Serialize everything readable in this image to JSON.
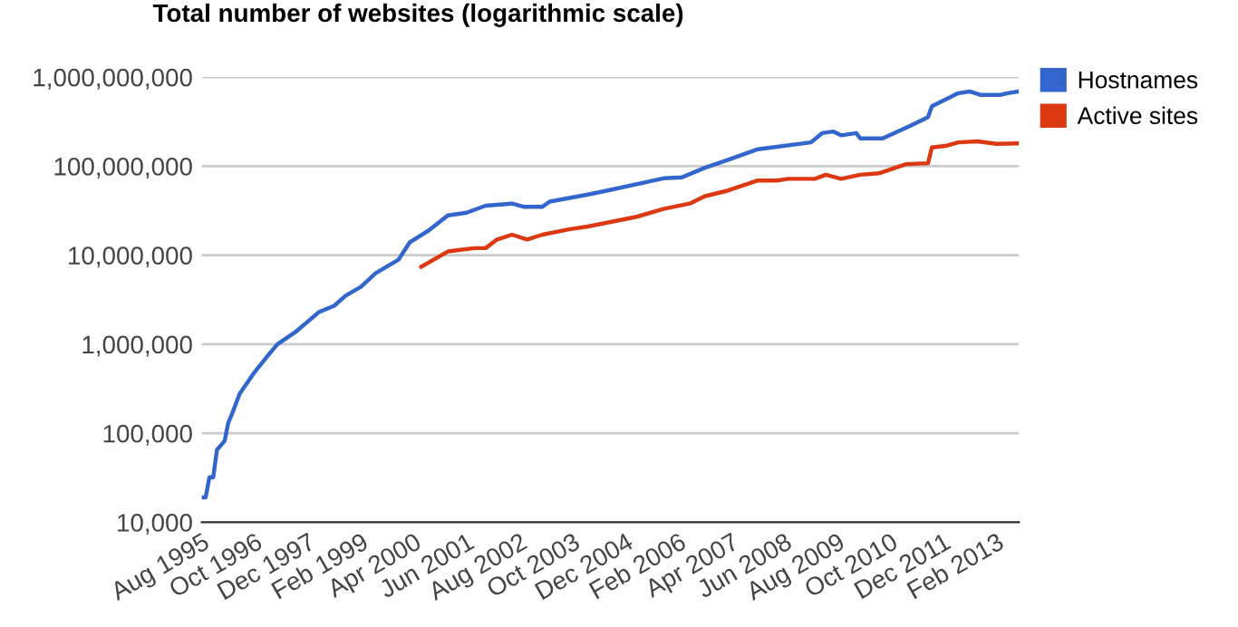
{
  "chart_data": {
    "type": "line",
    "title": "Total number of websites (logarithmic scale)",
    "log": "y",
    "grid": "y",
    "legend": "top right",
    "marker": "none",
    "line_style": "solid",
    "xlim": [
      "1995-08",
      "2013-08"
    ],
    "xticks": [
      {
        "value": "1995-08",
        "label": "Aug 1995"
      },
      {
        "value": "1996-10",
        "label": "Oct 1996"
      },
      {
        "value": "1997-12",
        "label": "Dec 1997"
      },
      {
        "value": "1999-02",
        "label": "Feb 1999"
      },
      {
        "value": "2000-04",
        "label": "Apr 2000"
      },
      {
        "value": "2001-06",
        "label": "Jun 2001"
      },
      {
        "value": "2002-08",
        "label": "Aug 2002"
      },
      {
        "value": "2003-10",
        "label": "Oct 2003"
      },
      {
        "value": "2004-12",
        "label": "Dec 2004"
      },
      {
        "value": "2006-02",
        "label": "Feb 2006"
      },
      {
        "value": "2007-04",
        "label": "Apr 2007"
      },
      {
        "value": "2008-06",
        "label": "Jun 2008"
      },
      {
        "value": "2009-08",
        "label": "Aug 2009"
      },
      {
        "value": "2010-10",
        "label": "Oct 2010"
      },
      {
        "value": "2011-12",
        "label": "Dec 2011"
      },
      {
        "value": "2013-02",
        "label": "Feb 2013"
      }
    ],
    "ylim": [
      10000,
      1000000000
    ],
    "yticks": [
      {
        "value": 10000,
        "label": "10,000"
      },
      {
        "value": 100000,
        "label": "100,000"
      },
      {
        "value": 1000000,
        "label": "1,000,000"
      },
      {
        "value": 10000000,
        "label": "10,000,000"
      },
      {
        "value": 100000000,
        "label": "100,000,000"
      },
      {
        "value": 1000000000,
        "label": "1,000,000,000"
      }
    ],
    "series": [
      {
        "name": "Hostnames",
        "color": "#3366cc",
        "x": [
          "1995-08",
          "1995-09",
          "1995-10",
          "1995-11",
          "1995-12",
          "1996-02",
          "1996-03",
          "1996-04",
          "1996-06",
          "1996-10",
          "1997-01",
          "1997-04",
          "1997-09",
          "1998-03",
          "1998-07",
          "1998-10",
          "1999-02",
          "1999-06",
          "1999-12",
          "2000-03",
          "2000-08",
          "2001-01",
          "2001-06",
          "2001-11",
          "2002-06",
          "2002-09",
          "2003-02",
          "2003-04",
          "2004-02",
          "2004-07",
          "2005-10",
          "2006-03",
          "2006-09",
          "2007-03",
          "2007-11",
          "2009-01",
          "2009-04",
          "2009-07",
          "2009-09",
          "2010-01",
          "2010-02",
          "2010-08",
          "2011-03",
          "2011-08",
          "2011-09",
          "2012-04",
          "2012-07",
          "2012-10",
          "2013-03",
          "2013-05",
          "2013-08"
        ],
        "values": [
          19000,
          19000,
          32000,
          32000,
          65000,
          82000,
          131000,
          166000,
          278000,
          490000,
          710000,
          1000000,
          1400000,
          2300000,
          2700000,
          3500000,
          4400000,
          6300000,
          8900000,
          14000000,
          19000000,
          28000000,
          30000000,
          36000000,
          38000000,
          35000000,
          35000000,
          40000000,
          48000000,
          53000000,
          73000000,
          75000000,
          96000000,
          117000000,
          155000000,
          185000000,
          235000000,
          245000000,
          222000000,
          235000000,
          205000000,
          205000000,
          280000000,
          355000000,
          470000000,
          660000000,
          690000000,
          630000000,
          630000000,
          660000000,
          690000000
        ]
      },
      {
        "name": "Active sites",
        "color": "#dc3912",
        "x": [
          "2000-06",
          "2001-01",
          "2001-08",
          "2001-11",
          "2002-02",
          "2002-06",
          "2002-10",
          "2003-02",
          "2003-09",
          "2004-02",
          "2005-03",
          "2005-10",
          "2006-05",
          "2006-09",
          "2007-03",
          "2007-11",
          "2008-04",
          "2008-07",
          "2009-02",
          "2009-05",
          "2009-09",
          "2010-02",
          "2010-07",
          "2011-02",
          "2011-08",
          "2011-09",
          "2012-01",
          "2012-04",
          "2012-09",
          "2013-02",
          "2013-08"
        ],
        "values": [
          7400000,
          11000000,
          12000000,
          12000000,
          15000000,
          17000000,
          15000000,
          17000000,
          19500000,
          21000000,
          27000000,
          33000000,
          38000000,
          46000000,
          53000000,
          69000000,
          69000000,
          72000000,
          72000000,
          80000000,
          72000000,
          80000000,
          83000000,
          105000000,
          108000000,
          162000000,
          170000000,
          185000000,
          190000000,
          178000000,
          180000000
        ]
      }
    ]
  }
}
